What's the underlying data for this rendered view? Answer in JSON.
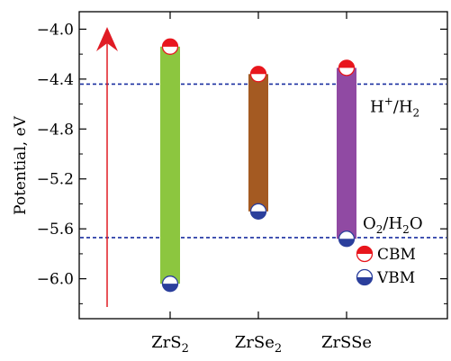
{
  "chart_data": {
    "type": "bar",
    "ylabel": "Potential, eV",
    "ylim": [
      -6.32,
      -3.86
    ],
    "y_ticks": [
      {
        "value": -4.0,
        "label": "-4.0"
      },
      {
        "value": -4.4,
        "label": "-4.4"
      },
      {
        "value": -4.8,
        "label": "-4.8"
      },
      {
        "value": -5.2,
        "label": "-5.2"
      },
      {
        "value": -5.6,
        "label": "-5.6"
      },
      {
        "value": -6.0,
        "label": "-6.0"
      }
    ],
    "categories": [
      {
        "base": "ZrS",
        "sub": "2"
      },
      {
        "base": "ZrSe",
        "sub": "2"
      },
      {
        "base": "ZrSSe",
        "sub": ""
      }
    ],
    "series": [
      {
        "name": "CBM",
        "values": [
          -4.14,
          -4.36,
          -4.31
        ],
        "color": "#e8161d"
      },
      {
        "name": "VBM",
        "values": [
          -6.04,
          -5.46,
          -5.68
        ],
        "color": "#2b3f9c"
      }
    ],
    "bar_colors": [
      "#8cc63f",
      "#a45a22",
      "#904aa3"
    ],
    "reference_lines": [
      {
        "value": -4.44,
        "label_base": "H",
        "label_sup": "+",
        "label_mid": "/H",
        "label_sub": "2"
      },
      {
        "value": -5.67,
        "label_base": "O",
        "label_sub1": "2",
        "label_mid": "/H",
        "label_sub2": "2",
        "label_end": "O"
      }
    ],
    "reference_line_color": "#1a2fa0",
    "arrow_color": "#e01b24",
    "legend": {
      "position": "bottom-right",
      "entries": [
        "CBM",
        "VBM"
      ]
    }
  }
}
